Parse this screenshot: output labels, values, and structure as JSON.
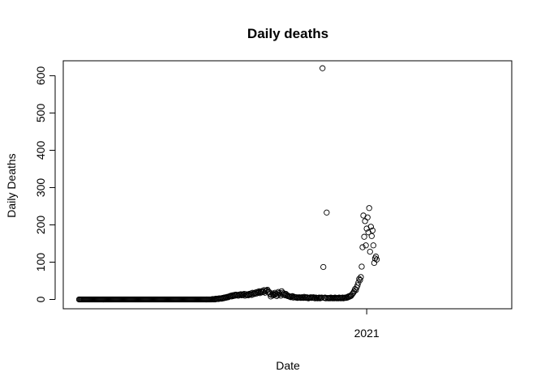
{
  "chart_data": {
    "type": "scatter",
    "title": "Daily deaths",
    "xlabel": "Date",
    "ylabel": "Daily Deaths",
    "xlim": [
      "2020-01-03",
      "2021-06-24"
    ],
    "ylim": [
      -25,
      640
    ],
    "x_ticks": [
      {
        "date": "2021-01-01",
        "label": "2021"
      }
    ],
    "y_ticks": [
      0,
      100,
      200,
      300,
      400,
      500,
      600
    ],
    "grid": false,
    "legend": "none",
    "marker": "open-circle",
    "color": "#000000",
    "series": [
      {
        "start_date": "2020-01-22",
        "values": [
          0,
          0,
          0,
          0,
          0,
          0,
          0,
          0,
          0,
          0,
          0,
          0,
          0,
          0,
          0,
          0,
          0,
          0,
          0,
          0,
          0,
          0,
          0,
          0,
          0,
          0,
          0,
          0,
          0,
          0,
          0,
          0,
          0,
          0,
          0,
          0,
          0,
          0,
          0,
          0,
          0,
          0,
          0,
          0,
          0,
          0,
          0,
          0,
          0,
          0,
          0,
          0,
          0,
          0,
          0,
          0,
          0,
          0,
          0,
          0,
          0,
          0,
          0,
          0,
          0,
          0,
          0,
          0,
          0,
          0,
          0,
          0,
          0,
          0,
          0,
          0,
          0,
          0,
          0,
          0,
          0,
          0,
          0,
          0,
          0,
          0,
          0,
          0,
          0,
          0,
          0,
          0,
          0,
          0,
          0,
          0,
          0,
          0,
          0,
          0,
          0,
          0,
          0,
          0,
          0,
          0,
          0,
          0,
          0,
          0,
          0,
          0,
          0,
          0,
          0,
          0,
          0,
          0,
          0,
          0,
          0,
          0,
          0,
          0,
          0,
          0,
          0,
          0,
          0,
          0,
          0,
          0,
          0,
          0,
          0,
          0,
          0,
          0,
          0,
          0,
          0,
          0,
          0,
          0,
          0,
          0,
          0,
          0,
          0,
          0,
          0,
          0,
          0,
          0,
          0,
          0,
          0,
          0,
          0,
          0,
          1,
          0,
          1,
          0,
          2,
          1,
          2,
          1,
          3,
          2,
          3,
          2,
          4,
          3,
          5,
          4,
          6,
          5,
          7,
          6,
          8,
          9,
          10,
          8,
          11,
          9,
          12,
          10,
          13,
          11,
          12,
          10,
          13,
          12,
          14,
          11,
          13,
          12,
          15,
          10,
          14,
          12,
          13,
          11,
          15,
          13,
          16,
          12,
          18,
          14,
          17,
          15,
          19,
          16,
          20,
          18,
          22,
          17,
          21,
          19,
          23,
          20,
          25,
          18,
          22,
          24,
          26,
          21,
          20,
          14,
          8,
          12,
          16,
          11,
          13,
          18,
          15,
          9,
          12,
          20,
          17,
          14,
          10,
          22,
          18,
          13,
          16,
          11,
          15,
          12,
          9,
          10,
          8,
          7,
          6,
          8,
          9,
          5,
          7,
          6,
          5,
          6,
          4,
          5,
          6,
          5,
          4,
          6,
          5,
          4,
          7,
          5,
          4,
          6,
          5,
          3,
          4,
          5,
          6,
          4,
          5,
          6,
          4,
          3,
          5,
          4,
          3,
          4,
          5,
          3,
          4,
          5,
          620,
          87,
          4,
          5,
          3,
          233,
          4,
          3,
          4,
          3,
          5,
          4,
          3,
          4,
          3,
          5,
          4,
          3,
          4,
          3,
          5,
          4,
          3,
          4,
          5,
          3,
          4,
          5,
          4,
          6,
          5,
          8,
          7,
          10,
          9,
          12,
          15,
          18,
          22,
          28,
          25,
          32,
          38,
          45,
          55,
          52,
          60,
          88,
          140,
          225,
          168,
          210,
          145,
          190,
          220,
          180,
          245,
          128,
          195,
          170,
          185,
          145,
          98,
          110,
          115,
          107
        ]
      }
    ]
  }
}
